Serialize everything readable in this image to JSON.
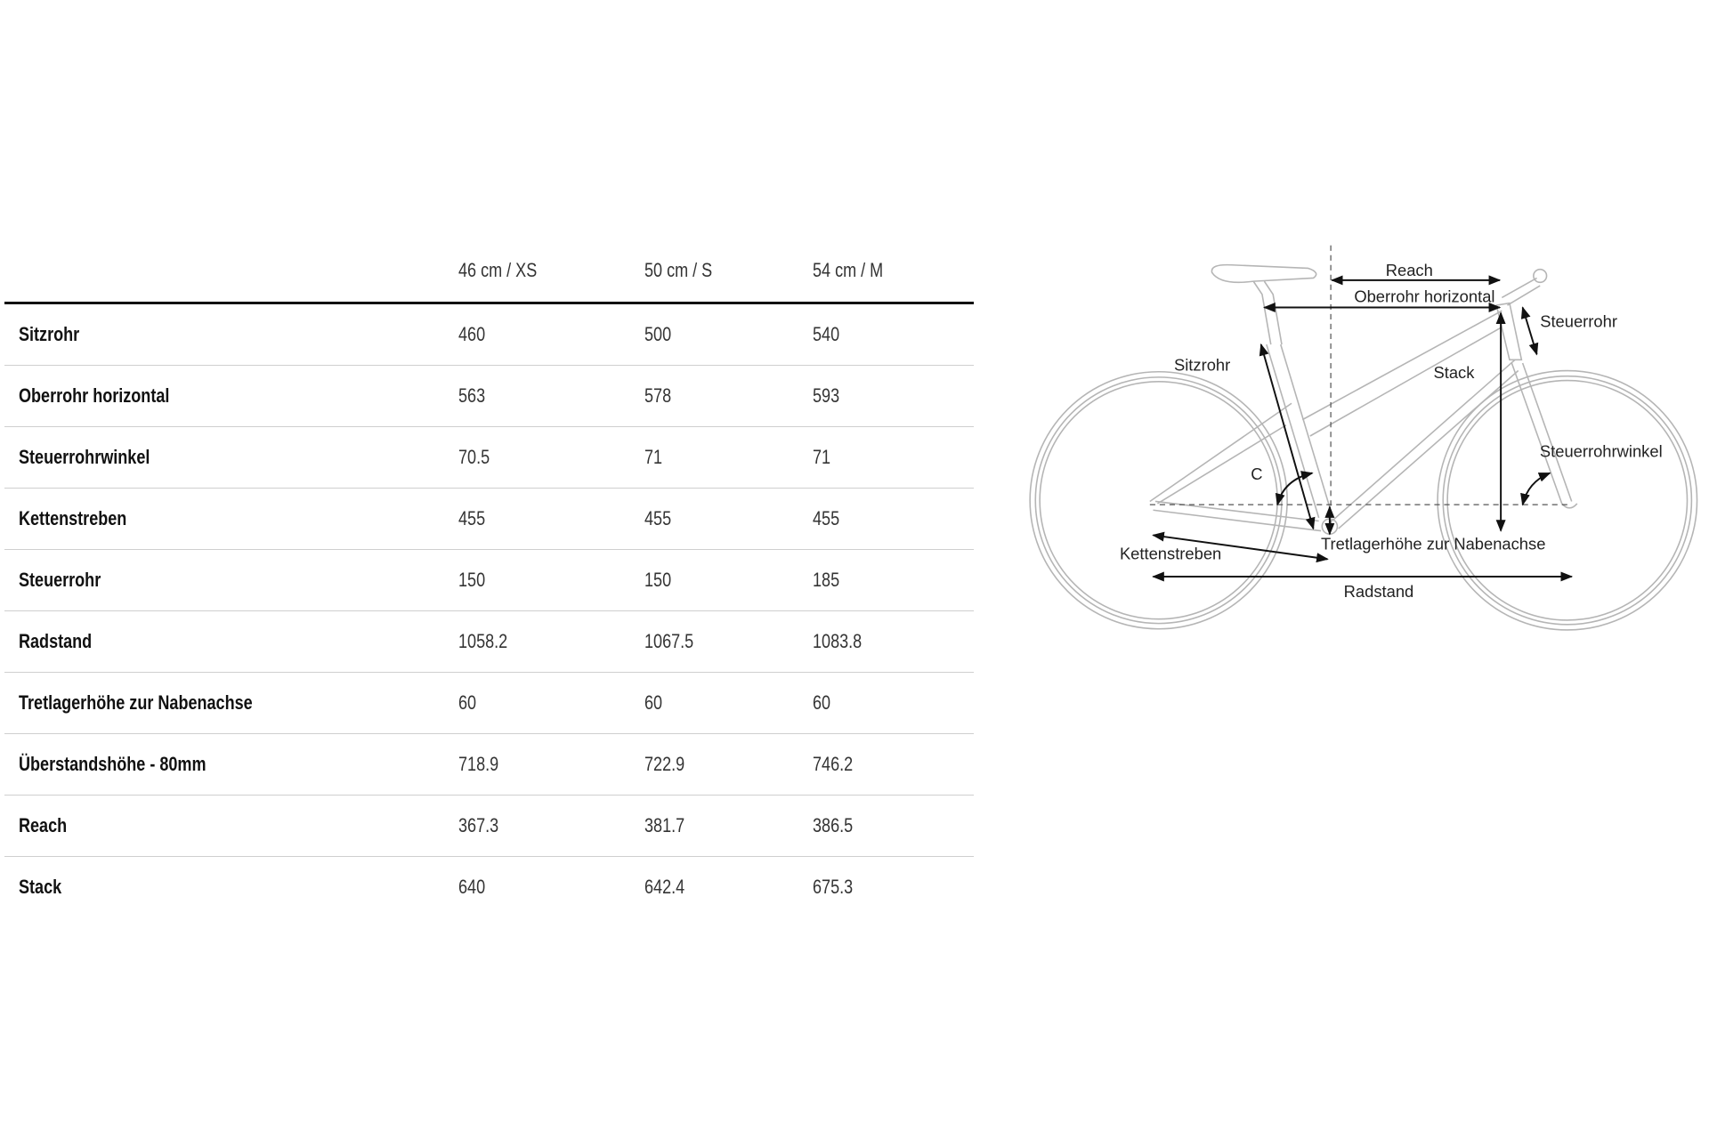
{
  "table": {
    "columns": [
      "46 cm / XS",
      "50 cm / S",
      "54 cm / M"
    ],
    "rows": [
      {
        "label": "Sitzrohr",
        "values": [
          "460",
          "500",
          "540"
        ]
      },
      {
        "label": "Oberrohr horizontal",
        "values": [
          "563",
          "578",
          "593"
        ]
      },
      {
        "label": "Steuerrohrwinkel",
        "values": [
          "70.5",
          "71",
          "71"
        ]
      },
      {
        "label": "Kettenstreben",
        "values": [
          "455",
          "455",
          "455"
        ]
      },
      {
        "label": "Steuerrohr",
        "values": [
          "150",
          "150",
          "185"
        ]
      },
      {
        "label": "Radstand",
        "values": [
          "1058.2",
          "1067.5",
          "1083.8"
        ]
      },
      {
        "label": "Tretlagerhöhe zur Nabenachse",
        "values": [
          "60",
          "60",
          "60"
        ]
      },
      {
        "label": "Überstandshöhe - 80mm",
        "values": [
          "718.9",
          "722.9",
          "746.2"
        ]
      },
      {
        "label": "Reach",
        "values": [
          "367.3",
          "381.7",
          "386.5"
        ]
      },
      {
        "label": "Stack",
        "values": [
          "640",
          "642.4",
          "675.3"
        ]
      }
    ]
  },
  "diagram": {
    "labels": {
      "reach": "Reach",
      "oberrohr": "Oberrohr horizontal",
      "steuerrohr": "Steuerrohr",
      "stack": "Stack",
      "sitzrohr": "Sitzrohr",
      "c": "C",
      "steuerrohrwinkel": "Steuerrohrwinkel",
      "tretlager": "Tretlagerhöhe zur Nabenachse",
      "kettenstreben": "Kettenstreben",
      "radstand": "Radstand"
    },
    "frame_color": "#b5b5b5",
    "dimension_color": "#111111"
  }
}
